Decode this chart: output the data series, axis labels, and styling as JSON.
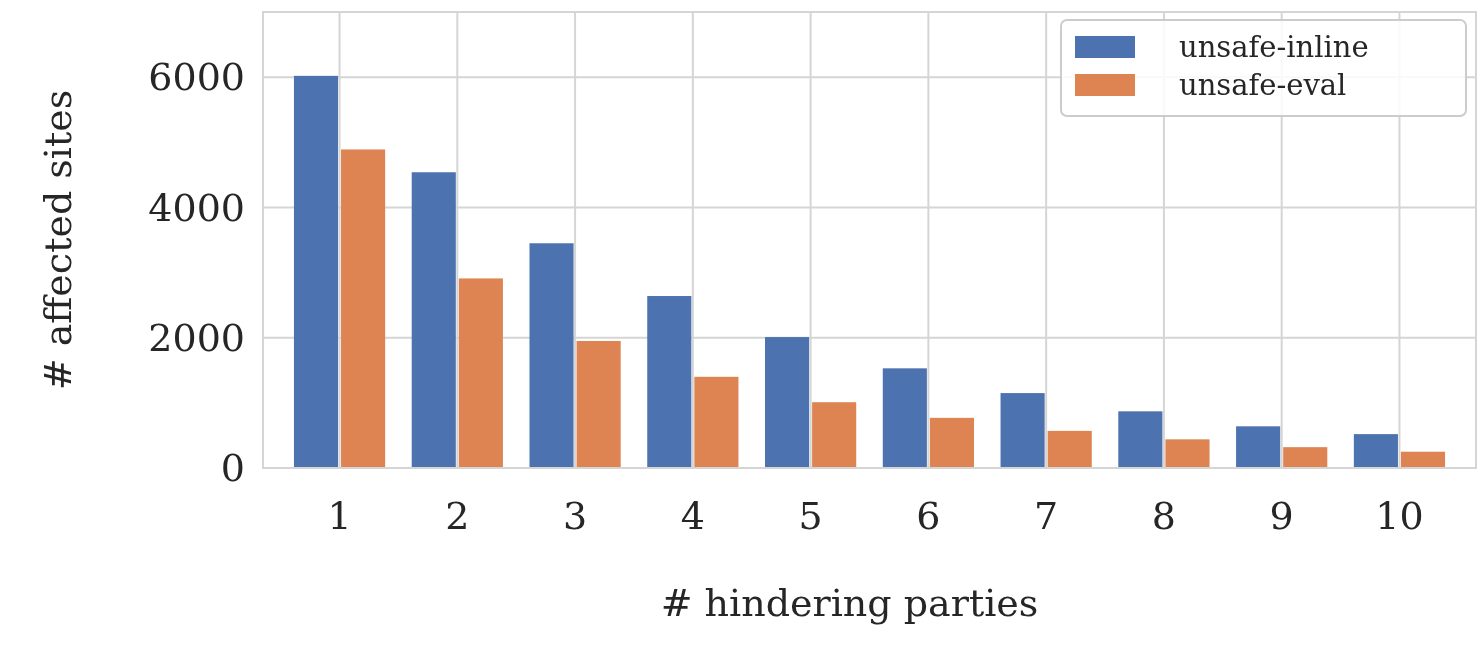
{
  "chart_data": {
    "type": "bar",
    "xlabel": "# hindering parties",
    "ylabel": "# affected sites",
    "categories": [
      "1",
      "2",
      "3",
      "4",
      "5",
      "6",
      "7",
      "8",
      "9",
      "10"
    ],
    "series": [
      {
        "name": "unsafe-inline",
        "color": "#4c72b0",
        "values": [
          6020,
          4540,
          3450,
          2640,
          2010,
          1530,
          1150,
          870,
          640,
          520
        ]
      },
      {
        "name": "unsafe-eval",
        "color": "#dd8452",
        "values": [
          4890,
          2910,
          1950,
          1400,
          1010,
          770,
          570,
          440,
          320,
          250
        ]
      }
    ],
    "ylim": [
      0,
      7000
    ],
    "yticks": [
      0,
      2000,
      4000,
      6000
    ],
    "grid": true,
    "legend": "top right"
  }
}
